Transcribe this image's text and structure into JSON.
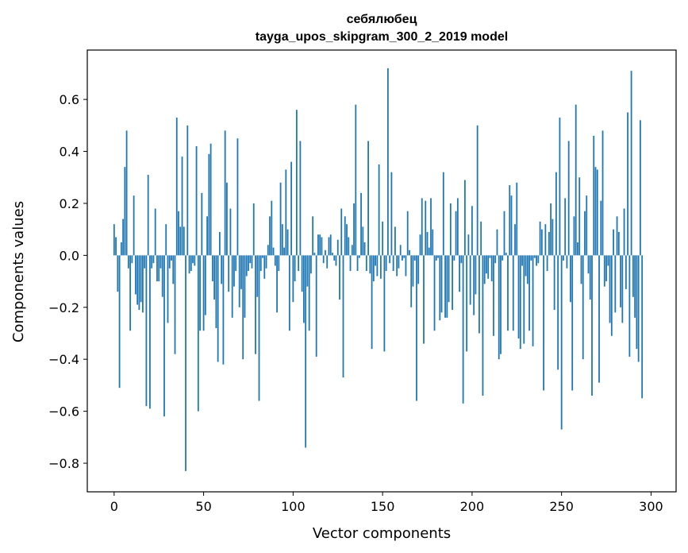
{
  "chart_data": {
    "type": "bar",
    "title": "себялюбец",
    "subtitle": "tayga_upos_skipgram_300_2_2019 model",
    "xlabel": "Vector components",
    "ylabel": "Components values",
    "xlim": [
      -15,
      314
    ],
    "ylim": [
      -0.91,
      0.79
    ],
    "xticks": [
      0,
      50,
      100,
      150,
      200,
      250,
      300
    ],
    "yticks": [
      -0.8,
      -0.6,
      -0.4,
      -0.2,
      0.0,
      0.2,
      0.4,
      0.6
    ],
    "ytick_labels": [
      "−0.8",
      "−0.6",
      "−0.4",
      "−0.2",
      "0.0",
      "0.2",
      "0.4",
      "0.6"
    ],
    "bar_color": "#1f77b4",
    "bar_width": 0.8,
    "grid": false,
    "values": [
      0.12,
      0.07,
      -0.14,
      -0.51,
      0.05,
      0.14,
      0.34,
      0.48,
      -0.05,
      -0.29,
      -0.03,
      0.23,
      -0.15,
      -0.19,
      -0.21,
      -0.18,
      -0.22,
      -0.05,
      -0.58,
      0.31,
      -0.59,
      -0.05,
      -0.03,
      0.18,
      -0.1,
      -0.1,
      -0.05,
      -0.16,
      -0.62,
      0.12,
      -0.26,
      -0.05,
      -0.02,
      -0.11,
      -0.38,
      0.53,
      0.17,
      0.11,
      0.38,
      0.11,
      -0.83,
      0.5,
      -0.07,
      -0.06,
      -0.03,
      -0.04,
      0.42,
      -0.6,
      -0.29,
      0.24,
      -0.29,
      -0.23,
      0.15,
      0.39,
      0.43,
      -0.1,
      -0.17,
      -0.28,
      -0.41,
      0.09,
      -0.11,
      -0.42,
      0.48,
      0.28,
      -0.14,
      0.18,
      -0.24,
      -0.12,
      -0.06,
      0.45,
      -0.2,
      -0.13,
      -0.4,
      -0.24,
      -0.08,
      -0.06,
      -0.03,
      -0.05,
      0.2,
      -0.38,
      -0.16,
      -0.56,
      -0.06,
      -0.01,
      -0.09,
      -0.05,
      0.04,
      0.15,
      0.21,
      0.03,
      -0.04,
      -0.22,
      -0.06,
      0.28,
      0.12,
      0.03,
      0.33,
      0.1,
      -0.29,
      0.36,
      -0.18,
      -0.1,
      0.56,
      -0.06,
      0.44,
      -0.14,
      -0.26,
      -0.74,
      -0.12,
      -0.29,
      -0.07,
      0.15,
      0.01,
      -0.39,
      0.08,
      0.08,
      0.07,
      -0.03,
      0.02,
      -0.05,
      0.07,
      0.08,
      0.01,
      -0.02,
      -0.04,
      0.06,
      -0.17,
      0.18,
      -0.47,
      0.15,
      0.12,
      0.07,
      -0.06,
      0.04,
      0.2,
      0.58,
      -0.06,
      -0.01,
      0.24,
      0.11,
      0.05,
      -0.06,
      0.44,
      -0.07,
      -0.36,
      -0.1,
      -0.04,
      -0.08,
      0.35,
      -0.09,
      0.13,
      -0.37,
      -0.06,
      0.72,
      -0.03,
      0.32,
      -0.06,
      0.11,
      -0.08,
      -0.05,
      0.04,
      -0.02,
      -0.01,
      -0.08,
      0.17,
      0.02,
      -0.2,
      -0.12,
      -0.02,
      -0.56,
      -0.11,
      0.08,
      0.22,
      -0.34,
      0.21,
      0.09,
      0.03,
      0.22,
      0.1,
      -0.29,
      -0.02,
      -0.01,
      -0.25,
      -0.22,
      0.32,
      -0.24,
      -0.24,
      -0.18,
      0.2,
      -0.21,
      -0.02,
      0.17,
      0.22,
      -0.14,
      -0.03,
      -0.57,
      0.29,
      -0.37,
      0.08,
      -0.19,
      0.19,
      -0.23,
      -0.15,
      0.5,
      -0.3,
      0.13,
      -0.54,
      -0.11,
      -0.07,
      -0.09,
      -0.01,
      -0.1,
      -0.31,
      -0.03,
      0.1,
      -0.4,
      -0.38,
      -0.02,
      0.17,
      0.01,
      -0.29,
      0.27,
      0.23,
      -0.29,
      0.12,
      0.28,
      -0.32,
      -0.36,
      -0.04,
      -0.34,
      -0.08,
      -0.11,
      -0.29,
      -0.02,
      -0.35,
      -0.01,
      -0.04,
      -0.03,
      0.13,
      0.1,
      -0.52,
      0.12,
      -0.06,
      0.09,
      0.2,
      0.14,
      -0.21,
      0.32,
      -0.44,
      0.53,
      -0.67,
      -0.02,
      0.22,
      -0.05,
      0.44,
      -0.18,
      -0.52,
      0.15,
      0.58,
      0.05,
      0.3,
      -0.11,
      -0.4,
      0.17,
      0.23,
      -0.07,
      -0.17,
      -0.54,
      0.46,
      0.34,
      0.33,
      -0.49,
      0.21,
      0.48,
      -0.12,
      -0.1,
      -0.04,
      -0.26,
      -0.31,
      0.1,
      -0.22,
      0.15,
      0.09,
      -0.2,
      -0.26,
      0.18,
      -0.13,
      0.55,
      -0.39,
      0.71,
      -0.16,
      -0.24,
      -0.36,
      -0.41,
      0.52,
      -0.55
    ]
  }
}
